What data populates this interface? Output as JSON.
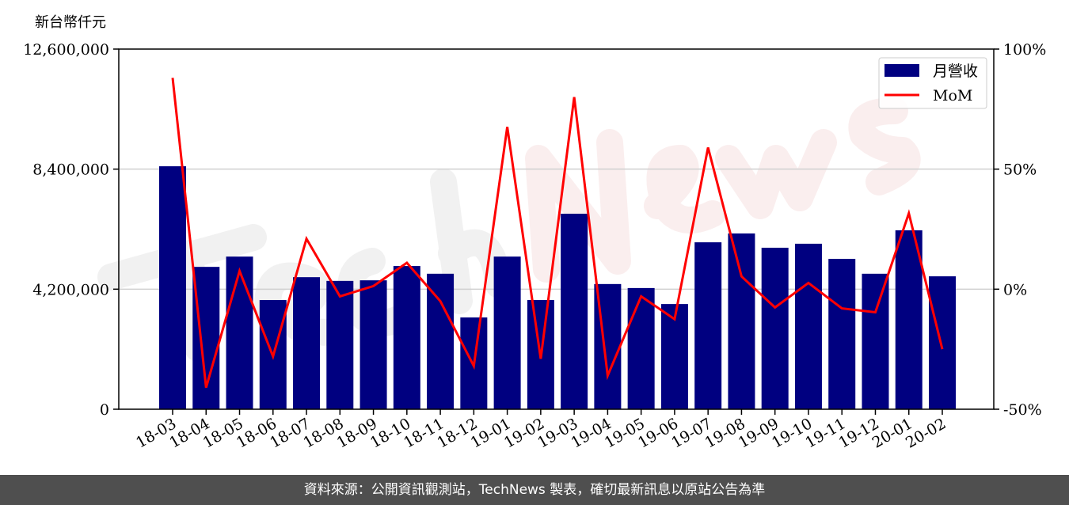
{
  "chart_data": {
    "type": "bar+line",
    "y_unit_label": "新台幣仟元",
    "categories": [
      "18-03",
      "18-04",
      "18-05",
      "18-06",
      "18-07",
      "18-08",
      "18-09",
      "18-10",
      "18-11",
      "18-12",
      "19-01",
      "19-02",
      "19-03",
      "19-04",
      "19-05",
      "19-06",
      "19-07",
      "19-08",
      "19-09",
      "19-10",
      "19-11",
      "19-12",
      "20-01",
      "20-02"
    ],
    "series": [
      {
        "name": "月營收",
        "type": "bar",
        "axis": "left",
        "color": "#000080",
        "values": [
          8500000,
          4980000,
          5340000,
          3820000,
          4620000,
          4490000,
          4510000,
          5010000,
          4740000,
          3210000,
          5340000,
          3820000,
          6840000,
          4380000,
          4240000,
          3680000,
          5840000,
          6150000,
          5650000,
          5790000,
          5260000,
          4740000,
          6260000,
          4650000
        ]
      },
      {
        "name": "MoM",
        "type": "line",
        "axis": "right",
        "color": "#ff0000",
        "values": [
          88,
          -41,
          7.6,
          -28,
          21,
          -3,
          1.3,
          11,
          -5,
          -32,
          67.6,
          -29,
          80,
          -36,
          -3,
          -12.5,
          59,
          5.3,
          -7.6,
          2.6,
          -8,
          -9.6,
          31.6,
          -25
        ]
      }
    ],
    "left_axis": {
      "ylim": [
        0,
        12600000
      ],
      "ticks": [
        0,
        4200000,
        8400000,
        12600000
      ],
      "tick_labels": [
        "0",
        "4,200,000",
        "8,400,000",
        "12,600,000"
      ]
    },
    "right_axis": {
      "ylim": [
        -50,
        100
      ],
      "ticks": [
        -50,
        0,
        50,
        100
      ],
      "tick_labels": [
        "-50%",
        "0%",
        "50%",
        "100%"
      ]
    },
    "grid": "horizontal",
    "legend_position": "top-right"
  },
  "watermark": "TechNews",
  "footer": "資料來源：公開資訊觀測站，TechNews 製表，確切最新訊息以原站公告為準"
}
